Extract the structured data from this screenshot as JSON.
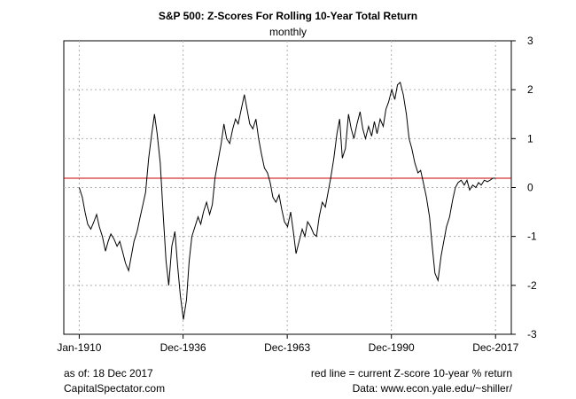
{
  "chart_data": {
    "type": "line",
    "title": "S&P 500: Z-Scores For Rolling 10-Year Total Return",
    "subtitle": "monthly",
    "xlabel": "",
    "ylabel": "",
    "x_tick_labels": [
      "Jan-1910",
      "Dec-1936",
      "Dec-1963",
      "Dec-1990",
      "Dec-2017"
    ],
    "x_tick_years": [
      1910,
      1936.92,
      1963.92,
      1990.92,
      2017.92
    ],
    "xlim": [
      1906,
      2022
    ],
    "ylim": [
      -3,
      3
    ],
    "y_ticks": [
      -3,
      -2,
      -1,
      0,
      1,
      2,
      3
    ],
    "y_axis_side": "right",
    "grid": true,
    "reference_line": {
      "value": 0.19,
      "color": "#cc0000"
    },
    "series": [
      {
        "color": "#000000",
        "x": [
          1910.0,
          1910.8,
          1911.5,
          1912.2,
          1913.0,
          1913.8,
          1914.5,
          1915.2,
          1916.0,
          1916.8,
          1917.5,
          1918.2,
          1919.0,
          1919.8,
          1920.5,
          1921.2,
          1922.0,
          1922.8,
          1923.5,
          1924.2,
          1925.0,
          1925.8,
          1926.5,
          1927.2,
          1928.0,
          1928.8,
          1929.5,
          1930.2,
          1931.0,
          1931.8,
          1932.5,
          1933.2,
          1934.0,
          1934.8,
          1935.5,
          1936.2,
          1937.0,
          1937.8,
          1938.5,
          1939.2,
          1940.0,
          1940.8,
          1941.5,
          1942.2,
          1943.0,
          1943.8,
          1944.5,
          1945.2,
          1946.0,
          1946.8,
          1947.5,
          1948.2,
          1949.0,
          1949.8,
          1950.5,
          1951.2,
          1952.0,
          1952.8,
          1953.5,
          1954.2,
          1955.0,
          1955.8,
          1956.5,
          1957.2,
          1958.0,
          1958.8,
          1959.5,
          1960.2,
          1961.0,
          1961.8,
          1962.5,
          1963.2,
          1964.0,
          1964.8,
          1965.5,
          1966.2,
          1967.0,
          1967.8,
          1968.5,
          1969.2,
          1970.0,
          1970.8,
          1971.5,
          1972.2,
          1973.0,
          1973.8,
          1974.5,
          1975.2,
          1976.0,
          1976.8,
          1977.5,
          1978.2,
          1979.0,
          1979.8,
          1980.5,
          1981.2,
          1982.0,
          1982.8,
          1983.5,
          1984.2,
          1985.0,
          1985.8,
          1986.5,
          1987.2,
          1988.0,
          1988.8,
          1989.5,
          1990.2,
          1991.0,
          1991.8,
          1992.5,
          1993.2,
          1994.0,
          1994.8,
          1995.5,
          1996.2,
          1997.0,
          1997.8,
          1998.5,
          1999.2,
          2000.0,
          2000.8,
          2001.5,
          2002.2,
          2003.0,
          2003.8,
          2004.5,
          2005.2,
          2006.0,
          2006.8,
          2007.5,
          2008.2,
          2009.0,
          2009.8,
          2010.5,
          2011.2,
          2012.0,
          2012.8,
          2013.5,
          2014.2,
          2015.0,
          2015.8,
          2016.5,
          2017.2,
          2017.9
        ],
        "values": [
          0.0,
          -0.2,
          -0.5,
          -0.75,
          -0.85,
          -0.7,
          -0.55,
          -0.8,
          -1.0,
          -1.3,
          -1.1,
          -0.95,
          -1.05,
          -1.2,
          -1.1,
          -1.3,
          -1.55,
          -1.7,
          -1.4,
          -1.1,
          -0.9,
          -0.6,
          -0.35,
          -0.1,
          0.6,
          1.1,
          1.5,
          1.1,
          0.5,
          -0.6,
          -1.5,
          -2.0,
          -1.2,
          -0.9,
          -1.6,
          -2.2,
          -2.7,
          -2.3,
          -1.5,
          -1.0,
          -0.8,
          -0.6,
          -0.75,
          -0.5,
          -0.3,
          -0.55,
          -0.35,
          0.2,
          0.55,
          0.9,
          1.3,
          1.0,
          0.9,
          1.2,
          1.4,
          1.3,
          1.6,
          1.9,
          1.6,
          1.3,
          1.2,
          1.4,
          1.0,
          0.7,
          0.4,
          0.3,
          0.1,
          -0.2,
          -0.3,
          -0.15,
          -0.45,
          -0.7,
          -0.8,
          -0.5,
          -0.9,
          -1.35,
          -1.1,
          -0.85,
          -1.0,
          -0.7,
          -0.8,
          -0.95,
          -1.0,
          -0.6,
          -0.3,
          -0.4,
          -0.1,
          0.2,
          0.6,
          1.1,
          1.4,
          0.6,
          0.8,
          1.5,
          1.2,
          1.0,
          1.3,
          1.55,
          1.2,
          1.0,
          1.25,
          1.05,
          1.35,
          1.1,
          1.4,
          1.25,
          1.6,
          1.75,
          2.0,
          1.8,
          2.1,
          2.15,
          1.9,
          1.5,
          1.0,
          0.8,
          0.5,
          0.3,
          0.35,
          0.1,
          -0.2,
          -0.6,
          -1.2,
          -1.75,
          -1.9,
          -1.4,
          -1.1,
          -0.8,
          -0.6,
          -0.25,
          0.0,
          0.1,
          0.15,
          0.05,
          0.15,
          -0.05,
          0.05,
          0.0,
          0.1,
          0.05,
          0.15,
          0.12,
          0.15,
          0.19,
          0.19
        ]
      }
    ]
  },
  "footer": {
    "as_of": "as of: 18 Dec 2017",
    "site": "CapitalSpectator.com",
    "red_line_note": "red line = current Z-score 10-year % return",
    "source": "Data: www.econ.yale.edu/~shiller/"
  }
}
